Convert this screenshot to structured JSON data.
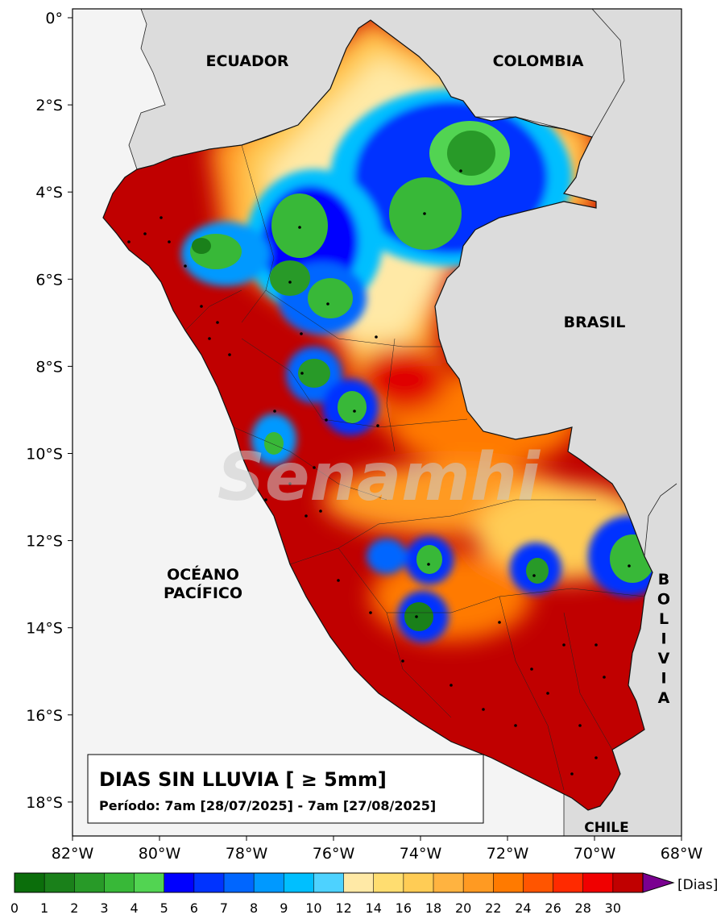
{
  "map": {
    "countries": [
      "ECUADOR",
      "COLOMBIA",
      "BRASIL",
      "CHILE"
    ],
    "bolivia_letters": [
      "B",
      "O",
      "L",
      "I",
      "V",
      "I",
      "A"
    ],
    "ocean": [
      "OCÉANO",
      "PACÍFICO"
    ],
    "watermark": "Senamhi",
    "lat_ticks": [
      "0°",
      "2°S",
      "4°S",
      "6°S",
      "8°S",
      "10°S",
      "12°S",
      "14°S",
      "16°S",
      "18°S"
    ],
    "lon_ticks": [
      "82°W",
      "80°W",
      "78°W",
      "76°W",
      "74°W",
      "72°W",
      "70°W",
      "68°W"
    ]
  },
  "legend_box": {
    "title": "DIAS SIN LLUVIA [ ≥ 5mm]",
    "period": "Período: 7am [28/07/2025] - 7am [27/08/2025]"
  },
  "colorbar": {
    "unit": "[Dias]",
    "ticks": [
      "0",
      "1",
      "2",
      "3",
      "4",
      "5",
      "6",
      "7",
      "8",
      "9",
      "10",
      "12",
      "14",
      "16",
      "18",
      "20",
      "22",
      "24",
      "26",
      "28",
      "30"
    ],
    "colors": [
      "#0b6e0b",
      "#1a801a",
      "#289a28",
      "#38b838",
      "#52d452",
      "#0000ff",
      "#0033ff",
      "#0066ff",
      "#0099ff",
      "#00bfff",
      "#4dd2ff",
      "#ffe9a6",
      "#ffdd70",
      "#ffcc55",
      "#ffb340",
      "#ff9a22",
      "#ff7a00",
      "#ff5500",
      "#ff2a00",
      "#f00000",
      "#c00000"
    ],
    "extend_color": "#7a0090"
  }
}
